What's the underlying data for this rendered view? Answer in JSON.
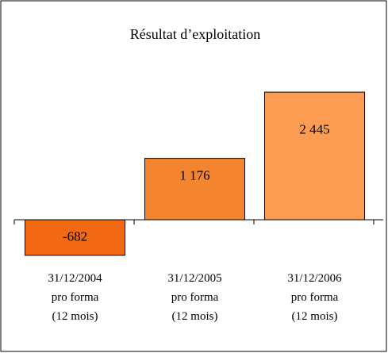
{
  "chart_data": {
    "type": "bar",
    "title": "Résultat d’exploitation",
    "categories": [
      "31/12/2004\npro forma\n(12 mois)",
      "31/12/2005\npro forma\n(12 mois)",
      "31/12/2006\npro forma\n(12 mois)"
    ],
    "values": [
      -682,
      1176,
      2445
    ],
    "value_labels": [
      "-682",
      "1 176",
      "2 445"
    ],
    "colors": [
      "#f26914",
      "#f5842e",
      "#fb9c52"
    ],
    "ylim": [
      -1000,
      3000
    ]
  }
}
